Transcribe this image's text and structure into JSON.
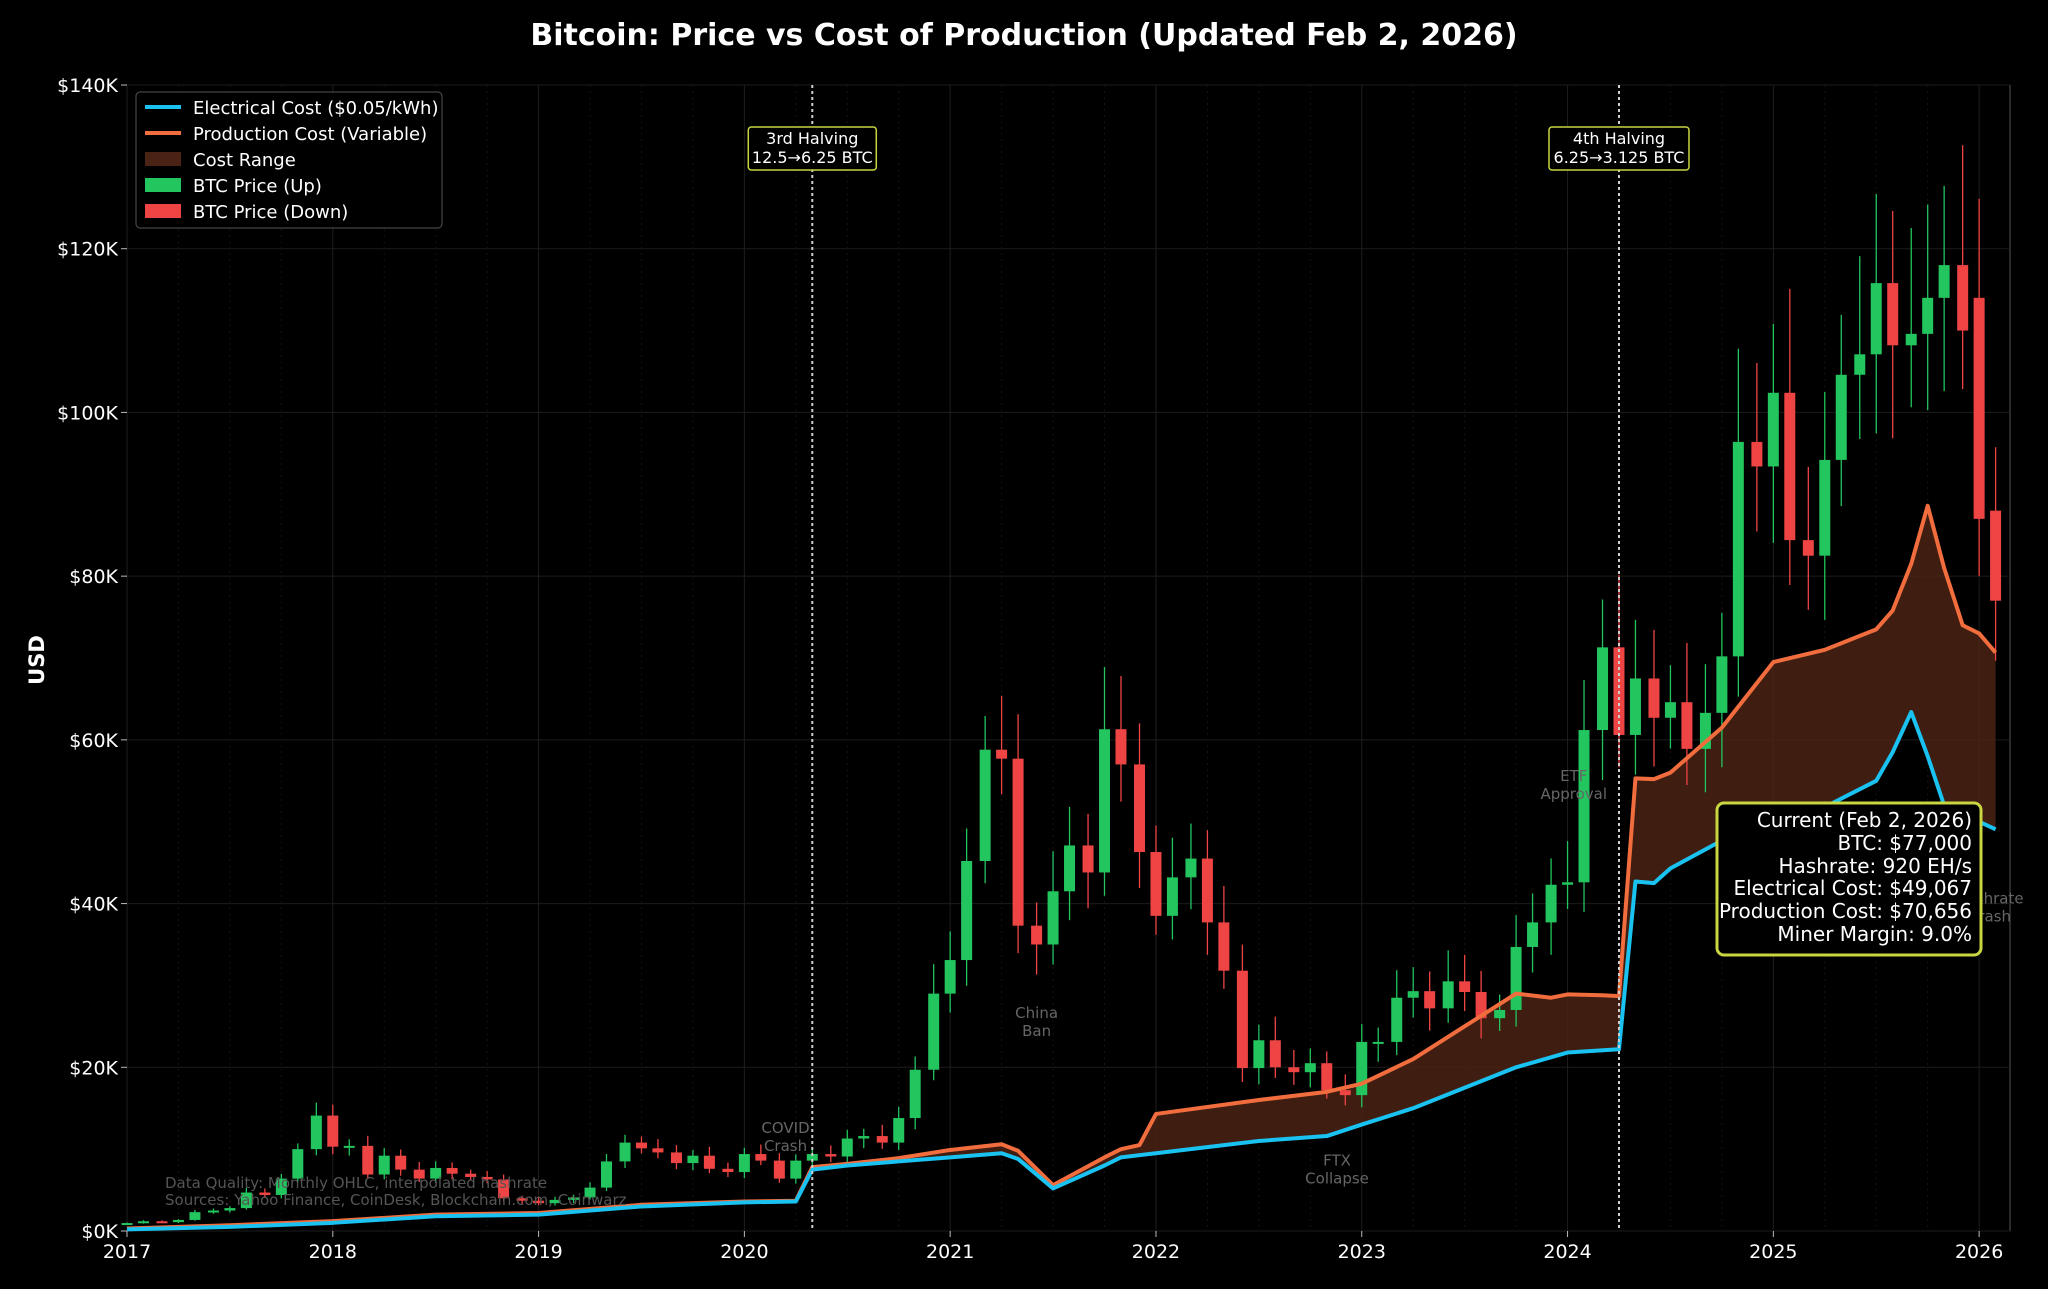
{
  "chart_data": {
    "type": "candlestick+line",
    "title": "Bitcoin: Price vs Cost of Production (Updated Feb 2, 2026)",
    "ylabel": "USD",
    "xlabel": "",
    "xlim": [
      2017.0,
      2026.15
    ],
    "ylim": [
      0,
      140000
    ],
    "grid": true,
    "y_ticks": [
      0,
      20000,
      40000,
      60000,
      80000,
      100000,
      120000,
      140000
    ],
    "y_tick_labels": [
      "$0K",
      "$20K",
      "$40K",
      "$60K",
      "$80K",
      "$100K",
      "$120K",
      "$140K"
    ],
    "x_ticks": [
      2017,
      2018,
      2019,
      2020,
      2021,
      2022,
      2023,
      2024,
      2025,
      2026
    ],
    "x_tick_labels": [
      "2017",
      "2018",
      "2019",
      "2020",
      "2021",
      "2022",
      "2023",
      "2024",
      "2025",
      "2026"
    ],
    "legend": {
      "position": "top-left",
      "items": [
        {
          "label": "Electrical Cost ($0.05/kWh)",
          "kind": "line",
          "color": "#19c2f0"
        },
        {
          "label": "Production Cost (Variable)",
          "kind": "line",
          "color": "#f26d3d"
        },
        {
          "label": "Cost Range",
          "kind": "patch",
          "color": "#4a2314"
        },
        {
          "label": "BTC Price (Up)",
          "kind": "patch",
          "color": "#22c55e"
        },
        {
          "label": "BTC Price (Down)",
          "kind": "patch",
          "color": "#ef4444"
        }
      ]
    },
    "electrical_cost": {
      "name": "Electrical Cost ($0.05/kWh)",
      "x": [
        2017.0,
        2017.5,
        2018.0,
        2018.5,
        2019.0,
        2019.5,
        2020.0,
        2020.25,
        2020.33,
        2020.5,
        2020.75,
        2021.0,
        2021.25,
        2021.33,
        2021.5,
        2021.75,
        2021.83,
        2022.0,
        2022.5,
        2022.83,
        2023.0,
        2023.25,
        2023.5,
        2023.75,
        2024.0,
        2024.25,
        2024.33,
        2024.42,
        2024.5,
        2024.75,
        2025.0,
        2025.25,
        2025.5,
        2025.58,
        2025.67,
        2025.75,
        2025.83,
        2025.92,
        2026.0,
        2026.08
      ],
      "y": [
        200,
        500,
        1000,
        1800,
        2000,
        3000,
        3500,
        3600,
        7500,
        8000,
        8500,
        9000,
        9500,
        8800,
        5200,
        8000,
        9000,
        9500,
        11000,
        11600,
        13000,
        15000,
        17500,
        20000,
        21800,
        22200,
        42700,
        42500,
        44300,
        47700,
        49500,
        51800,
        55000,
        58500,
        63400,
        58000,
        52000,
        50700,
        50000,
        49067
      ]
    },
    "production_cost": {
      "name": "Production Cost (Variable)",
      "x": [
        2017.0,
        2017.5,
        2018.0,
        2018.5,
        2019.0,
        2019.5,
        2020.0,
        2020.25,
        2020.33,
        2020.5,
        2020.75,
        2021.0,
        2021.25,
        2021.33,
        2021.5,
        2021.75,
        2021.83,
        2021.92,
        2022.0,
        2022.5,
        2022.83,
        2023.0,
        2023.25,
        2023.5,
        2023.75,
        2023.92,
        2024.0,
        2024.17,
        2024.25,
        2024.33,
        2024.42,
        2024.5,
        2024.75,
        2025.0,
        2025.25,
        2025.5,
        2025.58,
        2025.67,
        2025.75,
        2025.83,
        2025.92,
        2026.0,
        2026.08
      ],
      "y": [
        300,
        700,
        1200,
        2000,
        2200,
        3200,
        3600,
        3700,
        7800,
        8200,
        8900,
        9900,
        10600,
        9800,
        5600,
        9000,
        10000,
        10500,
        14300,
        16000,
        17000,
        18000,
        21000,
        25000,
        29000,
        28500,
        28900,
        28800,
        28700,
        55300,
        55200,
        56000,
        61500,
        69500,
        71000,
        73500,
        75800,
        81500,
        88600,
        81000,
        74000,
        73000,
        70656
      ]
    },
    "candles_x": [
      2017.0,
      2017.08,
      2017.17,
      2017.25,
      2017.33,
      2017.42,
      2017.5,
      2017.58,
      2017.67,
      2017.75,
      2017.83,
      2017.92,
      2018.0,
      2018.08,
      2018.17,
      2018.25,
      2018.33,
      2018.42,
      2018.5,
      2018.58,
      2018.67,
      2018.75,
      2018.83,
      2018.92,
      2019.0,
      2019.08,
      2019.17,
      2019.25,
      2019.33,
      2019.42,
      2019.5,
      2019.58,
      2019.67,
      2019.75,
      2019.83,
      2019.92,
      2020.0,
      2020.08,
      2020.17,
      2020.25,
      2020.33,
      2020.42,
      2020.5,
      2020.58,
      2020.67,
      2020.75,
      2020.83,
      2020.92,
      2021.0,
      2021.08,
      2021.17,
      2021.25,
      2021.33,
      2021.42,
      2021.5,
      2021.58,
      2021.67,
      2021.75,
      2021.83,
      2021.92,
      2022.0,
      2022.08,
      2022.17,
      2022.25,
      2022.33,
      2022.42,
      2022.5,
      2022.58,
      2022.67,
      2022.75,
      2022.83,
      2022.92,
      2023.0,
      2023.08,
      2023.17,
      2023.25,
      2023.33,
      2023.42,
      2023.5,
      2023.58,
      2023.67,
      2023.75,
      2023.83,
      2023.92,
      2024.0,
      2024.08,
      2024.17,
      2024.25,
      2024.33,
      2024.42,
      2024.5,
      2024.58,
      2024.67,
      2024.75,
      2024.83,
      2024.92,
      2025.0,
      2025.08,
      2025.17,
      2025.25,
      2025.33,
      2025.42,
      2025.5,
      2025.58,
      2025.67,
      2025.75,
      2025.83,
      2025.92,
      2026.0,
      2026.08
    ],
    "candles_open": [
      960,
      970,
      1190,
      1080,
      1350,
      2300,
      2500,
      2800,
      4700,
      4400,
      6400,
      10000,
      14100,
      10300,
      10400,
      6900,
      9200,
      7500,
      6400,
      7700,
      7000,
      6600,
      6300,
      4000,
      3700,
      3400,
      3800,
      4100,
      5300,
      8500,
      10800,
      10100,
      9600,
      8300,
      9200,
      7600,
      7200,
      9400,
      8600,
      6400,
      8600,
      9400,
      9100,
      11300,
      11600,
      10800,
      13800,
      19700,
      29000,
      33100,
      45200,
      58800,
      57700,
      37300,
      35000,
      41500,
      47100,
      43800,
      61300,
      57000,
      46300,
      38500,
      43200,
      45500,
      37700,
      31800,
      19900,
      23300,
      20000,
      19400,
      20500,
      17200,
      16600,
      23100,
      23100,
      28500,
      29300,
      27200,
      30500,
      29200,
      26000,
      27000,
      34700,
      37700,
      42300,
      42600,
      61200,
      71300,
      60600,
      67500,
      62700,
      64600,
      58900,
      63300,
      70200,
      96400,
      93400,
      102400,
      84400,
      82500,
      94200,
      104600,
      107100,
      115800,
      108200,
      109600,
      114000,
      118000,
      114000,
      88000
    ],
    "candles_close": [
      970,
      1190,
      1080,
      1350,
      2300,
      2500,
      2800,
      4700,
      4400,
      6400,
      10000,
      14100,
      10300,
      10400,
      6900,
      9200,
      7500,
      6400,
      7700,
      7000,
      6600,
      6300,
      4000,
      3700,
      3400,
      3800,
      4100,
      5300,
      8500,
      10800,
      10100,
      9600,
      8300,
      9200,
      7600,
      7200,
      9400,
      8600,
      6400,
      8600,
      9400,
      9100,
      11300,
      11600,
      10800,
      13800,
      19700,
      29000,
      33100,
      45200,
      58800,
      57700,
      37300,
      35000,
      41500,
      47100,
      43800,
      61300,
      57000,
      46300,
      38500,
      43200,
      45500,
      37700,
      31800,
      19900,
      23300,
      20000,
      19400,
      20500,
      17200,
      16600,
      23100,
      23100,
      28500,
      29300,
      27200,
      30500,
      29200,
      26000,
      27000,
      34700,
      37700,
      42300,
      42600,
      61200,
      71300,
      60600,
      67500,
      62700,
      64600,
      58900,
      63300,
      70200,
      96400,
      93400,
      102400,
      84400,
      82500,
      94200,
      104600,
      107100,
      115800,
      108200,
      109600,
      114000,
      118000,
      110000,
      87000,
      77000
    ]
  },
  "annotations": [
    {
      "text_lines": [
        "COVID",
        "Crash"
      ],
      "x": 2020.2,
      "y": 12000
    },
    {
      "text_lines": [
        "China",
        "Ban"
      ],
      "x": 2021.42,
      "y": 26000
    },
    {
      "text_lines": [
        "FTX",
        "Collapse"
      ],
      "x": 2022.88,
      "y": 8000
    },
    {
      "text_lines": [
        "ETF",
        "Approval"
      ],
      "x": 2024.03,
      "y": 55000
    },
    {
      "text_lines": [
        "Hashrate",
        "Crash"
      ],
      "x": 2026.05,
      "y": 40000
    }
  ],
  "halvings": [
    {
      "x": 2020.33,
      "line1": "3rd Halving",
      "line2": "12.5→6.25 BTC"
    },
    {
      "x": 2024.25,
      "line1": "4th Halving",
      "line2": "6.25→3.125 BTC"
    }
  ],
  "info_box": {
    "lines": [
      "Current (Feb 2, 2026)",
      "BTC: $77,000",
      "Hashrate: 920 EH/s",
      "Electrical Cost: $49,067",
      "Production Cost: $70,656",
      "Miner Margin: 9.0%"
    ]
  },
  "source_notes": [
    "Data Quality: Monthly OHLC, interpolated hashrate",
    "Sources: Yahoo Finance, CoinDesk, Blockchain.com, Coinwarz"
  ],
  "colors": {
    "up": "#22c55e",
    "down": "#ef4444",
    "electrical": "#19c2f0",
    "production": "#f26d3d",
    "fill": "#4a2314",
    "halving": "#c8d640"
  }
}
